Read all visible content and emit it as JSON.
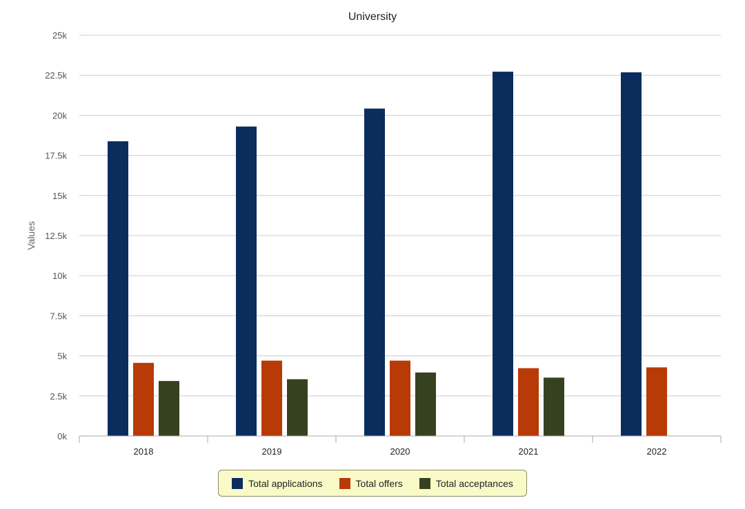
{
  "chart_data": {
    "type": "bar",
    "title": "University",
    "xlabel": "",
    "ylabel": "Values",
    "ylim": [
      0,
      25000
    ],
    "y_ticks": [
      0,
      2500,
      5000,
      7500,
      10000,
      12500,
      15000,
      17500,
      20000,
      22500,
      25000
    ],
    "y_tick_labels": [
      "0k",
      "2.5k",
      "5k",
      "7.5k",
      "10k",
      "12.5k",
      "15k",
      "17.5k",
      "20k",
      "22.5k",
      "25k"
    ],
    "categories": [
      "2018",
      "2019",
      "2020",
      "2021",
      "2022"
    ],
    "series": [
      {
        "name": "Total applications",
        "color": "#0b2d5e",
        "values": [
          18380,
          19300,
          20420,
          22720,
          22680
        ]
      },
      {
        "name": "Total offers",
        "color": "#b83a06",
        "values": [
          4560,
          4700,
          4700,
          4230,
          4280
        ]
      },
      {
        "name": "Total acceptances",
        "color": "#36421f",
        "values": [
          3430,
          3540,
          3960,
          3640,
          null
        ]
      }
    ],
    "grid": true,
    "legend_position": "bottom"
  }
}
